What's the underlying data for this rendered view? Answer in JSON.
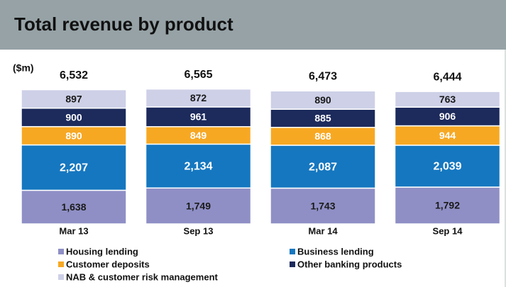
{
  "chart_data": {
    "type": "stacked_bar",
    "title": "Total revenue by product",
    "y_label": "($m)",
    "categories": [
      "Mar 13",
      "Sep 13",
      "Mar 14",
      "Sep 14"
    ],
    "series": [
      {
        "name": "Housing lending",
        "color": "#8f8fc6",
        "label_color": "#1a1a1a",
        "values": [
          1638,
          1749,
          1743,
          1792
        ],
        "value_labels": [
          "1,638",
          "1,749",
          "1,743",
          "1,792"
        ]
      },
      {
        "name": "Business lending",
        "color": "#1577c0",
        "label_color": "#ffffff",
        "values": [
          2207,
          2134,
          2087,
          2039
        ],
        "value_labels": [
          "2,207",
          "2,134",
          "2,087",
          "2,039"
        ]
      },
      {
        "name": "Customer deposits",
        "color": "#f7a823",
        "label_color": "#ffffff",
        "values": [
          890,
          849,
          868,
          944
        ]
      },
      {
        "name": "Other banking products",
        "color": "#1c2a5c",
        "label_color": "#ffffff",
        "values": [
          900,
          961,
          885,
          906
        ]
      },
      {
        "name": "NAB & customer risk management",
        "color": "#cdd0e7",
        "label_color": "#1a1a1a",
        "values": [
          897,
          872,
          890,
          763
        ]
      }
    ],
    "totals": [
      6532,
      6565,
      6473,
      6444
    ],
    "total_labels": [
      "6,532",
      "6,565",
      "6,473",
      "6,444"
    ]
  }
}
